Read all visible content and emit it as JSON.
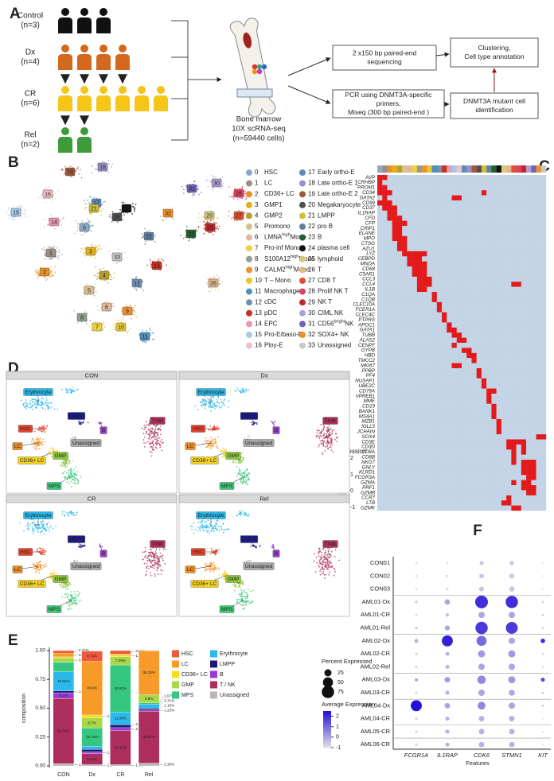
{
  "panel_a": {
    "letter": "A",
    "groups": [
      {
        "name": "Control",
        "n": "(n=3)",
        "count": 3,
        "color": "#111111"
      },
      {
        "name": "Dx",
        "n": "(n=4)",
        "count": 4,
        "color": "#d2691e"
      },
      {
        "name": "CR",
        "n": "(n=6)",
        "count": 6,
        "color": "#f5c518"
      },
      {
        "name": "Rel",
        "n": "(n=2)",
        "count": 2,
        "color": "#3f9a3a"
      }
    ],
    "bone_marrow": [
      "Bone marrow",
      "10X scRNA-seq",
      "(n=59440 cells)"
    ],
    "seq": [
      "2 x150 bp paired-end",
      "sequencing"
    ],
    "pcr": [
      "PCR using DNMT3A-specific",
      "primers,",
      "Miseq (300 bp paired-end )"
    ],
    "cluster": [
      "Clustering,",
      "Cell type annotation"
    ],
    "mutant": [
      "DNMT3A mutant cell",
      "identification"
    ]
  },
  "panel_b": {
    "letter": "B",
    "clusters": [
      {
        "id": 0,
        "name": "HSC",
        "color": "#8fa8c8"
      },
      {
        "id": 1,
        "name": "LC",
        "color": "#9a8f86"
      },
      {
        "id": 2,
        "name": "CD36+ LC",
        "color": "#e8902a"
      },
      {
        "id": 3,
        "name": "GMP1",
        "color": "#e0b020"
      },
      {
        "id": 4,
        "name": "GMP2",
        "color": "#b8a030"
      },
      {
        "id": 5,
        "name": "Promono",
        "color": "#d8c090"
      },
      {
        "id": 6,
        "name": "LMNA",
        "sup": "high",
        "after": "Mono",
        "color": "#e0b8a0"
      },
      {
        "id": 7,
        "name": "Pro-inf Mono",
        "color": "#f0d040"
      },
      {
        "id": 8,
        "name": "S100A12",
        "sup": "high",
        "after": "Mono",
        "color": "#90a090"
      },
      {
        "id": 9,
        "name": "CALM2",
        "sup": "high",
        "after": "Mono",
        "color": "#f09030"
      },
      {
        "id": 10,
        "name": "T – Mono",
        "color": "#e8c830"
      },
      {
        "id": 11,
        "name": "Macrophage",
        "color": "#5090c0"
      },
      {
        "id": 12,
        "name": "cDC",
        "color": "#7090b0"
      },
      {
        "id": 13,
        "name": "pDC",
        "color": "#c83020"
      },
      {
        "id": 14,
        "name": "EPC",
        "color": "#e898b0"
      },
      {
        "id": 15,
        "name": "Pro-E/baso-E",
        "color": "#a8c8e8"
      },
      {
        "id": 16,
        "name": "Ploy-E",
        "color": "#f0c0c8"
      },
      {
        "id": 17,
        "name": "Early ortho-E",
        "color": "#6088b8"
      },
      {
        "id": 18,
        "name": "Late ortho-E 1",
        "color": "#9890c8"
      },
      {
        "id": 19,
        "name": "Late ortho-E 2",
        "color": "#a05838"
      },
      {
        "id": 20,
        "name": "Megakaryocyte",
        "color": "#505050"
      },
      {
        "id": 21,
        "name": "LMPP",
        "color": "#d0c030"
      },
      {
        "id": 22,
        "name": "pro B",
        "color": "#6080a0"
      },
      {
        "id": 23,
        "name": "B",
        "color": "#206030"
      },
      {
        "id": 24,
        "name": "plasma cell",
        "color": "#101010"
      },
      {
        "id": 25,
        "name": "lymphoid",
        "color": "#d8c880"
      },
      {
        "id": 26,
        "name": "T",
        "color": "#e0b888"
      },
      {
        "id": 27,
        "name": "CD8 T",
        "color": "#e05030"
      },
      {
        "id": 28,
        "name": "Prolif NK T",
        "color": "#e04060"
      },
      {
        "id": 29,
        "name": "NK T",
        "color": "#c02828"
      },
      {
        "id": 30,
        "name": "CIML NK",
        "color": "#b0a0d0"
      },
      {
        "id": 31,
        "name": "CD56",
        "sup": "bright",
        "after": "NK",
        "color": "#7060b8"
      },
      {
        "id": 32,
        "name": "SOX4+ NK",
        "color": "#f09028"
      },
      {
        "id": 33,
        "name": "Unassigned",
        "color": "#c8c8c8"
      }
    ]
  },
  "panel_c": {
    "letter": "C",
    "genes": [
      "AVP",
      "CRHBP",
      "PROM1",
      "CD34",
      "GATA2",
      "CD99",
      "CD37",
      "IL1RAP",
      "CFD",
      "CFP",
      "CRIP1",
      "ELANE",
      "MPO",
      "CTSG",
      "AZU1",
      "LYZ",
      "CEBPD",
      "MNDA",
      "CD68",
      "C5AR1",
      "CCL3",
      "CCL4",
      "IL1B",
      "C1QA",
      "C1QB",
      "CLEC10A",
      "FCER1A",
      "CLEC4C",
      "PTPRS",
      "APOC1",
      "GATA1",
      "TUBB",
      "ALAS2",
      "CENPF",
      "GYPB",
      "HBD",
      "TMCC2",
      "MKI67",
      "PPBP",
      "PF4",
      "NUSAP1",
      "UBE2C",
      "CD79A",
      "VPREB1",
      "MME",
      "CD19",
      "BANK1",
      "MS4A1",
      "MZB1",
      "IGLL5",
      "JCHAIN",
      "SOX4",
      "CD3E",
      "CD3D",
      "CD8A",
      "CD8B",
      "NKG7",
      "GNLY",
      "KLRD1",
      "FCGR3A",
      "GZMA",
      "PRF1",
      "GZMB",
      "CCR7",
      "LTB",
      "GZMK"
    ],
    "peaks": [
      [
        0,
        1
      ],
      [
        0
      ],
      [
        0,
        1
      ],
      [
        0,
        1,
        2,
        21
      ],
      [
        1,
        15,
        16
      ],
      [
        0,
        1,
        2
      ],
      [
        1,
        2,
        3
      ],
      [
        2,
        3
      ],
      [
        2,
        3,
        4
      ],
      [
        3,
        4,
        5
      ],
      [
        3,
        4
      ],
      [
        3,
        4
      ],
      [
        3,
        4,
        5
      ],
      [
        4,
        5
      ],
      [
        4,
        5
      ],
      [
        5,
        6,
        7,
        8,
        9
      ],
      [
        6,
        7,
        8
      ],
      [
        6,
        7,
        8,
        9
      ],
      [
        7,
        8,
        9
      ],
      [
        7,
        8,
        9
      ],
      [
        8,
        9,
        10
      ],
      [
        8,
        9,
        10,
        27,
        28
      ],
      [
        8,
        9
      ],
      [
        11
      ],
      [
        11
      ],
      [
        12
      ],
      [
        12
      ],
      [
        13
      ],
      [
        13
      ],
      [
        14
      ],
      [
        14,
        15
      ],
      [
        15,
        16
      ],
      [
        16,
        17
      ],
      [
        15
      ],
      [
        17,
        18
      ],
      [
        18,
        19
      ],
      [
        19
      ],
      [
        15,
        16
      ],
      [
        20
      ],
      [
        20
      ],
      [
        21
      ],
      [
        21
      ],
      [
        22,
        23
      ],
      [
        22
      ],
      [
        22
      ],
      [
        23
      ],
      [
        23
      ],
      [
        23
      ],
      [
        24
      ],
      [
        24
      ],
      [
        24
      ],
      [
        32,
        33
      ],
      [
        26,
        27,
        28,
        29
      ],
      [
        26,
        27,
        29
      ],
      [
        27,
        29
      ],
      [
        27
      ],
      [
        27,
        29,
        30,
        31
      ],
      [
        29,
        30,
        31
      ],
      [
        29,
        30,
        31
      ],
      [
        30,
        31
      ],
      [
        27,
        29,
        30
      ],
      [
        29,
        30,
        31
      ],
      [
        30,
        31
      ],
      [
        26
      ],
      [
        25,
        26
      ],
      [
        27,
        28
      ]
    ],
    "high": 2,
    "low": -0.3,
    "legend_title": "Expression",
    "ticks": [
      2,
      1,
      0,
      -1
    ],
    "limits": [
      -1,
      2
    ]
  },
  "panel_d": {
    "letter": "D",
    "facets": [
      "CON",
      "Dx",
      "CR",
      "Rel"
    ],
    "labels": [
      {
        "text": "Erythrocyte",
        "color": "#29b6e8"
      },
      {
        "text": "LMPP",
        "color": "#1a1a8c"
      },
      {
        "text": "HSC",
        "color": "#e8442c"
      },
      {
        "text": "B",
        "color": "#9b3fc8"
      },
      {
        "text": "T/NK",
        "color": "#b0325a"
      },
      {
        "text": "LC",
        "color": "#f08c1e"
      },
      {
        "text": "Unassigned",
        "color": "#aaaaaa"
      },
      {
        "text": "CD36+ LC",
        "color": "#f5d21e"
      },
      {
        "text": "GMP",
        "color": "#8cc83c"
      },
      {
        "text": "MPS",
        "color": "#3cc878"
      }
    ]
  },
  "chart_data": [
    {
      "type": "bar",
      "letter": "E",
      "stacked": true,
      "ylabel": "composition",
      "categories": [
        "CON",
        "Dx",
        "CR",
        "Rel"
      ],
      "ylim": [
        0,
        1
      ],
      "yticks": [
        {
          "value": 0,
          "label": "0.00"
        },
        {
          "value": 0.25,
          "label": "0.25"
        },
        {
          "value": 0.5,
          "label": "0.50"
        },
        {
          "value": 0.75,
          "label": "0.75"
        },
        {
          "value": 1,
          "label": "1.00"
        }
      ],
      "series": [
        {
          "name": "HSC",
          "color": "#f05a3c",
          "values": [
            0.0225,
            0.0874,
            0.0301,
            0.001
          ],
          "value_labels": [
            "2.25%",
            "8.74%",
            "3.01%",
            null
          ]
        },
        {
          "name": "LC",
          "color": "#f79a2a",
          "values": [
            0.032,
            0.466,
            0.0072,
            0.3833
          ],
          "value_labels": [
            "3.2%",
            "46.6%",
            null,
            "38.33%"
          ]
        },
        {
          "name": "CD36+ LC",
          "color": "#f2e01e",
          "values": [
            0.01,
            0.0265,
            0.0164,
            0.001
          ],
          "value_labels": [
            null,
            "2.65%",
            "1.64%",
            null
          ]
        },
        {
          "name": "GMP",
          "color": "#a8d84a",
          "values": [
            0.0382,
            0.087,
            0.0709,
            0.068
          ],
          "value_labels": [
            "3.82%",
            "8.7%",
            "7.09%",
            "6.8%"
          ]
        },
        {
          "name": "MPS",
          "color": "#35c780",
          "values": [
            0.0816,
            0.1573,
            0.4081,
            0.0107
          ],
          "value_labels": [
            null,
            "15.73%",
            "40.81%",
            "1.07%"
          ]
        },
        {
          "name": "Erythrocyte",
          "color": "#2cb8e8",
          "values": [
            0.1654,
            0.028,
            0.1106,
            0.0371
          ],
          "value_labels": [
            "16.54%",
            null,
            "11.06%",
            "3.71%"
          ]
        },
        {
          "name": "LMPP",
          "color": "#1c1c78",
          "values": [
            0.0163,
            0.02,
            0.025,
            0.0119
          ],
          "value_labels": [
            "1.63%",
            null,
            "2.5%",
            "1.19%"
          ]
        },
        {
          "name": "B",
          "color": "#9a3ad0",
          "values": [
            0.051,
            0.0175,
            0.0265,
            0.0123
          ],
          "value_labels": [
            "5.1%",
            "1.75%",
            "2.65%",
            "1.23%"
          ]
        },
        {
          "name": "T / NK",
          "color": "#ad2d5c",
          "values": [
            0.5631,
            0.0945,
            0.2942,
            0.4507
          ],
          "value_labels": [
            "56.31%",
            "9.45%",
            "29.42%",
            "45.07%"
          ]
        },
        {
          "name": "Unassigned",
          "color": "#b8b8b8",
          "values": [
            0.0199,
            0.011,
            0.011,
            0.0239
          ],
          "value_labels": [
            "1.99%",
            "1.1%",
            "1.1%",
            "2.39%"
          ]
        }
      ]
    },
    {
      "type": "dot",
      "letter": "F",
      "xlabel": "Features",
      "categories": [
        "CON01",
        "CON02",
        "CON03",
        "AML01-Dx",
        "AML01-CR",
        "AML01-Rel",
        "AML02-Dx",
        "AML02-CR",
        "AML02-Rel",
        "AML03-Dx",
        "AML03-CR",
        "AML04-Dx",
        "AML04-CR",
        "AML05-CR",
        "AML06-CR"
      ],
      "features": [
        "FCGR1A",
        "IL1RAP",
        "CDK6",
        "STMN1",
        "KIT"
      ],
      "pct": [
        [
          2,
          2,
          8,
          10,
          1
        ],
        [
          2,
          3,
          10,
          12,
          1
        ],
        [
          2,
          3,
          12,
          15,
          1
        ],
        [
          3,
          15,
          80,
          75,
          2
        ],
        [
          2,
          5,
          20,
          20,
          2
        ],
        [
          3,
          12,
          75,
          70,
          2
        ],
        [
          8,
          60,
          50,
          20,
          10
        ],
        [
          3,
          8,
          25,
          25,
          2
        ],
        [
          3,
          8,
          20,
          20,
          2
        ],
        [
          5,
          15,
          35,
          25,
          8
        ],
        [
          3,
          8,
          20,
          18,
          2
        ],
        [
          60,
          15,
          30,
          20,
          2
        ],
        [
          3,
          8,
          15,
          15,
          1
        ],
        [
          3,
          8,
          15,
          15,
          1
        ],
        [
          3,
          8,
          15,
          15,
          1
        ]
      ],
      "avg": [
        [
          -0.8,
          -0.8,
          -0.5,
          -0.6,
          -0.8
        ],
        [
          -0.8,
          -0.8,
          -0.5,
          -0.6,
          -0.8
        ],
        [
          -0.8,
          -0.8,
          -0.5,
          -0.6,
          -0.8
        ],
        [
          -0.5,
          0,
          2,
          2,
          -0.5
        ],
        [
          -0.7,
          -0.3,
          0,
          0,
          -0.5
        ],
        [
          -0.5,
          0,
          1.8,
          1.8,
          -0.5
        ],
        [
          -0.3,
          2.2,
          1,
          0,
          2
        ],
        [
          -0.7,
          -0.3,
          0.2,
          0.2,
          -0.7
        ],
        [
          -0.7,
          -0.3,
          0,
          0,
          -0.7
        ],
        [
          0,
          0.2,
          0.5,
          0.2,
          1.5
        ],
        [
          -0.7,
          -0.2,
          0,
          0,
          -0.5
        ],
        [
          2.5,
          0,
          0.5,
          0,
          -0.5
        ],
        [
          -0.7,
          -0.2,
          -0.2,
          -0.2,
          -0.7
        ],
        [
          -0.7,
          -0.2,
          -0.2,
          -0.2,
          -0.7
        ],
        [
          -0.7,
          -0.2,
          -0.2,
          -0.2,
          -0.7
        ]
      ],
      "size_title": "Percent Expressed",
      "sizeticks": [
        25,
        50,
        75
      ],
      "sizelim": [
        0,
        80
      ],
      "color_title": "Average Expression",
      "colorticks": [
        2,
        1,
        0,
        -1
      ],
      "colorlim": [
        -1,
        2.5
      ],
      "color_low": "#e2e2e6",
      "color_high": "#2410d8"
    }
  ]
}
